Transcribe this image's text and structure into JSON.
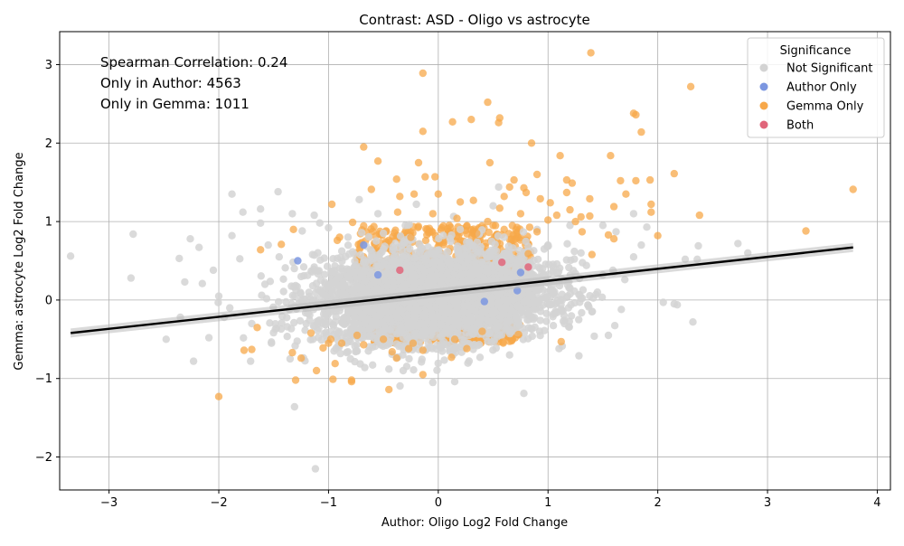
{
  "chart_data": {
    "type": "scatter",
    "title": "Contrast: ASD - Oligo vs astrocyte",
    "xlabel": "Author: Oligo Log2 Fold Change",
    "ylabel": "Gemma: astrocyte Log2 Fold Change",
    "xlim": [
      -3.45,
      4.12
    ],
    "ylim": [
      -2.42,
      3.42
    ],
    "xticks": [
      -3,
      -2,
      -1,
      0,
      1,
      2,
      3,
      4
    ],
    "yticks": [
      -2,
      -1,
      0,
      1,
      2,
      3
    ],
    "xtick_labels": [
      "−3",
      "−2",
      "−1",
      "0",
      "1",
      "2",
      "3",
      "4"
    ],
    "ytick_labels": [
      "−2",
      "−1",
      "0",
      "1",
      "2",
      "3"
    ],
    "grid": true,
    "legend": {
      "title": "Significance",
      "placement": "top-right",
      "entries": [
        {
          "label": "Not Significant",
          "color": "#d3d3d3"
        },
        {
          "label": "Author Only",
          "color": "#7b96e0"
        },
        {
          "label": "Gemma Only",
          "color": "#f7a84a"
        },
        {
          "label": "Both",
          "color": "#e0657a"
        }
      ]
    },
    "annotations": [
      "Spearman Correlation: 0.24",
      "Only in Author: 4563",
      "Only in Gemma: 1011"
    ],
    "regression_line": {
      "x": [
        -3.35,
        3.78
      ],
      "y": [
        -0.42,
        0.67
      ],
      "color": "#000000"
    },
    "series": [
      {
        "name": "Not Significant",
        "color": "#d3d3d3",
        "points": [
          [
            -3.35,
            0.56
          ],
          [
            -2.78,
            0.84
          ],
          [
            -2.8,
            0.28
          ],
          [
            -2.48,
            -0.5
          ],
          [
            -2.36,
            0.53
          ],
          [
            -2.35,
            -0.22
          ],
          [
            -2.31,
            0.23
          ],
          [
            -2.26,
            0.78
          ],
          [
            -2.23,
            -0.78
          ],
          [
            -2.18,
            0.67
          ],
          [
            -2.15,
            0.21
          ],
          [
            -2.09,
            -0.48
          ],
          [
            -1.88,
            1.35
          ],
          [
            -1.88,
            0.82
          ],
          [
            -1.78,
            1.12
          ],
          [
            -1.71,
            -0.78
          ],
          [
            -1.62,
            0.98
          ],
          [
            -1.62,
            1.16
          ],
          [
            -1.46,
            1.38
          ],
          [
            -1.33,
            1.1
          ],
          [
            -1.31,
            -1.36
          ],
          [
            -1.24,
            0.88
          ],
          [
            -1.12,
            -2.15
          ],
          [
            -1.13,
            1.08
          ],
          [
            -1.0,
            0.92
          ],
          [
            -0.72,
            1.28
          ],
          [
            -0.67,
            -0.86
          ],
          [
            -0.55,
            1.1
          ],
          [
            -0.45,
            -0.88
          ],
          [
            -0.32,
            -0.9
          ],
          [
            -0.2,
            1.22
          ],
          [
            -0.05,
            -1.05
          ],
          [
            0.15,
            -1.04
          ],
          [
            0.38,
            -0.73
          ],
          [
            0.5,
            1.2
          ],
          [
            0.78,
            -1.19
          ],
          [
            0.55,
            1.44
          ],
          [
            0.9,
            0.9
          ],
          [
            1.0,
            0.7
          ],
          [
            1.1,
            -0.62
          ],
          [
            1.2,
            0.95
          ],
          [
            1.28,
            -0.25
          ],
          [
            1.35,
            0.44
          ],
          [
            1.4,
            -0.15
          ],
          [
            1.5,
            0.95
          ],
          [
            1.55,
            -0.45
          ],
          [
            1.62,
            0.87
          ],
          [
            1.7,
            0.26
          ],
          [
            1.78,
            1.1
          ],
          [
            1.78,
            0.55
          ],
          [
            1.85,
            0.7
          ],
          [
            1.9,
            0.93
          ],
          [
            2.05,
            -0.03
          ],
          [
            2.15,
            -0.05
          ],
          [
            2.25,
            0.52
          ],
          [
            2.32,
            -0.28
          ],
          [
            2.37,
            0.69
          ],
          [
            2.36,
            0.52
          ],
          [
            2.73,
            0.72
          ],
          [
            2.82,
            0.6
          ],
          [
            -2.05,
            0.38
          ],
          [
            -1.95,
            -0.22
          ],
          [
            -1.52,
            -0.55
          ],
          [
            -1.35,
            -0.75
          ],
          [
            -1.55,
            0.7
          ],
          [
            -1.45,
            0.55
          ],
          [
            -0.95,
            -0.65
          ],
          [
            -0.5,
            0.85
          ],
          [
            0.25,
            -0.6
          ],
          [
            0.95,
            0.4
          ],
          [
            1.45,
            0.1
          ],
          [
            1.3,
            0.6
          ],
          [
            1.6,
            0.35
          ],
          [
            -1.7,
            -0.3
          ],
          [
            -1.9,
            -0.1
          ],
          [
            -2.0,
            0.05
          ],
          [
            -0.8,
            -0.75
          ],
          [
            0.65,
            -0.7
          ],
          [
            1.15,
            -0.3
          ],
          [
            -1.25,
            0.3
          ],
          [
            0.2,
            0.9
          ],
          [
            -0.3,
            0.95
          ],
          [
            0.6,
            0.8
          ],
          [
            -0.6,
            -0.6
          ]
        ],
        "cloud": {
          "x_mean": -0.05,
          "y_mean": 0.05,
          "x_sd": 0.52,
          "y_sd": 0.28,
          "count": 4200
        }
      },
      {
        "name": "Author Only",
        "color": "#7b96e0",
        "points": [
          [
            -1.28,
            0.5
          ],
          [
            -0.68,
            0.7
          ],
          [
            0.72,
            0.12
          ],
          [
            0.75,
            0.35
          ],
          [
            -0.55,
            0.32
          ],
          [
            0.42,
            -0.02
          ]
        ]
      },
      {
        "name": "Gemma Only",
        "color": "#f7a84a",
        "points": [
          [
            1.39,
            3.15
          ],
          [
            -0.14,
            2.89
          ],
          [
            2.3,
            2.72
          ],
          [
            0.45,
            2.52
          ],
          [
            1.78,
            2.38
          ],
          [
            1.8,
            2.36
          ],
          [
            0.56,
            2.32
          ],
          [
            0.13,
            2.27
          ],
          [
            0.3,
            2.3
          ],
          [
            0.55,
            2.26
          ],
          [
            -0.14,
            2.15
          ],
          [
            1.85,
            2.14
          ],
          [
            0.85,
            2.0
          ],
          [
            -0.68,
            1.95
          ],
          [
            1.11,
            1.84
          ],
          [
            1.57,
            1.84
          ],
          [
            -0.55,
            1.77
          ],
          [
            -0.18,
            1.75
          ],
          [
            0.47,
            1.75
          ],
          [
            2.15,
            1.61
          ],
          [
            0.9,
            1.6
          ],
          [
            -0.12,
            1.57
          ],
          [
            -0.03,
            1.57
          ],
          [
            -0.38,
            1.54
          ],
          [
            0.69,
            1.53
          ],
          [
            1.17,
            1.53
          ],
          [
            1.66,
            1.52
          ],
          [
            1.8,
            1.52
          ],
          [
            1.93,
            1.53
          ],
          [
            1.22,
            1.49
          ],
          [
            0.65,
            1.44
          ],
          [
            0.78,
            1.43
          ],
          [
            -0.61,
            1.41
          ],
          [
            3.78,
            1.41
          ],
          [
            1.17,
            1.37
          ],
          [
            -0.22,
            1.35
          ],
          [
            0.8,
            1.37
          ],
          [
            1.71,
            1.35
          ],
          [
            -0.35,
            1.32
          ],
          [
            0.6,
            1.32
          ],
          [
            1.38,
            1.29
          ],
          [
            0.93,
            1.29
          ],
          [
            0.2,
            1.25
          ],
          [
            0.32,
            1.27
          ],
          [
            1.02,
            1.24
          ],
          [
            1.94,
            1.22
          ],
          [
            -0.97,
            1.22
          ],
          [
            1.2,
            1.15
          ],
          [
            0.56,
            1.17
          ],
          [
            1.6,
            1.19
          ],
          [
            1.94,
            1.12
          ],
          [
            1.3,
            1.06
          ],
          [
            1.38,
            1.07
          ],
          [
            2.38,
            1.08
          ],
          [
            1.08,
            1.08
          ],
          [
            1.0,
            1.02
          ],
          [
            0.17,
            1.04
          ],
          [
            -0.37,
            1.12
          ],
          [
            0.9,
            0.87
          ],
          [
            1.31,
            0.87
          ],
          [
            3.35,
            0.88
          ],
          [
            2.0,
            0.82
          ],
          [
            1.55,
            0.83
          ],
          [
            1.6,
            0.78
          ],
          [
            -1.32,
            0.9
          ],
          [
            -0.45,
            0.76
          ],
          [
            1.4,
            0.58
          ],
          [
            0.82,
            0.59
          ],
          [
            -1.43,
            0.71
          ],
          [
            -0.78,
            0.99
          ],
          [
            -0.92,
            0.76
          ],
          [
            -1.62,
            0.64
          ],
          [
            1.12,
            -0.53
          ],
          [
            0.4,
            -0.4
          ],
          [
            -0.74,
            -0.45
          ],
          [
            0.73,
            -0.44
          ],
          [
            -1.16,
            -0.42
          ],
          [
            -1.65,
            -0.35
          ],
          [
            -0.98,
            -0.5
          ],
          [
            -0.88,
            -0.55
          ],
          [
            -1.05,
            -0.61
          ],
          [
            -1.7,
            -0.63
          ],
          [
            -1.77,
            -0.64
          ],
          [
            -1.33,
            -0.67
          ],
          [
            -0.23,
            -0.55
          ],
          [
            -0.27,
            -0.62
          ],
          [
            0.26,
            -0.62
          ],
          [
            -0.68,
            -0.57
          ],
          [
            -0.14,
            -0.64
          ],
          [
            -0.42,
            -0.66
          ],
          [
            -1.25,
            -0.74
          ],
          [
            -0.94,
            -0.81
          ],
          [
            -0.38,
            -0.74
          ],
          [
            0.12,
            -0.73
          ],
          [
            -1.11,
            -0.9
          ],
          [
            -1.3,
            -1.02
          ],
          [
            -0.96,
            -1.01
          ],
          [
            -0.79,
            -1.04
          ],
          [
            -0.79,
            -1.02
          ],
          [
            -0.14,
            -0.95
          ],
          [
            -0.45,
            -1.14
          ],
          [
            -2.0,
            -1.23
          ],
          [
            -0.9,
            0.8
          ],
          [
            -0.1,
            0.9
          ],
          [
            0.1,
            0.95
          ],
          [
            0.35,
            0.85
          ],
          [
            -0.25,
            0.8
          ],
          [
            0.6,
            0.9
          ],
          [
            -0.5,
            -0.5
          ],
          [
            0.15,
            -0.5
          ],
          [
            -1.0,
            -0.55
          ],
          [
            0.5,
            0.95
          ],
          [
            0.75,
            1.1
          ],
          [
            -0.05,
            1.1
          ],
          [
            0.0,
            1.35
          ],
          [
            1.25,
            1.0
          ],
          [
            0.45,
            1.0
          ]
        ],
        "bands": [
          {
            "x_min": -0.75,
            "x_max": 0.85,
            "y_min": 0.28,
            "y_max": 0.95,
            "count": 380
          },
          {
            "x_min": -0.6,
            "x_max": 0.75,
            "y_min": -0.55,
            "y_max": -0.25,
            "count": 300
          }
        ]
      },
      {
        "name": "Both",
        "color": "#e0657a",
        "points": [
          [
            0.58,
            0.48
          ],
          [
            0.82,
            0.42
          ],
          [
            -0.35,
            0.38
          ]
        ]
      }
    ]
  }
}
